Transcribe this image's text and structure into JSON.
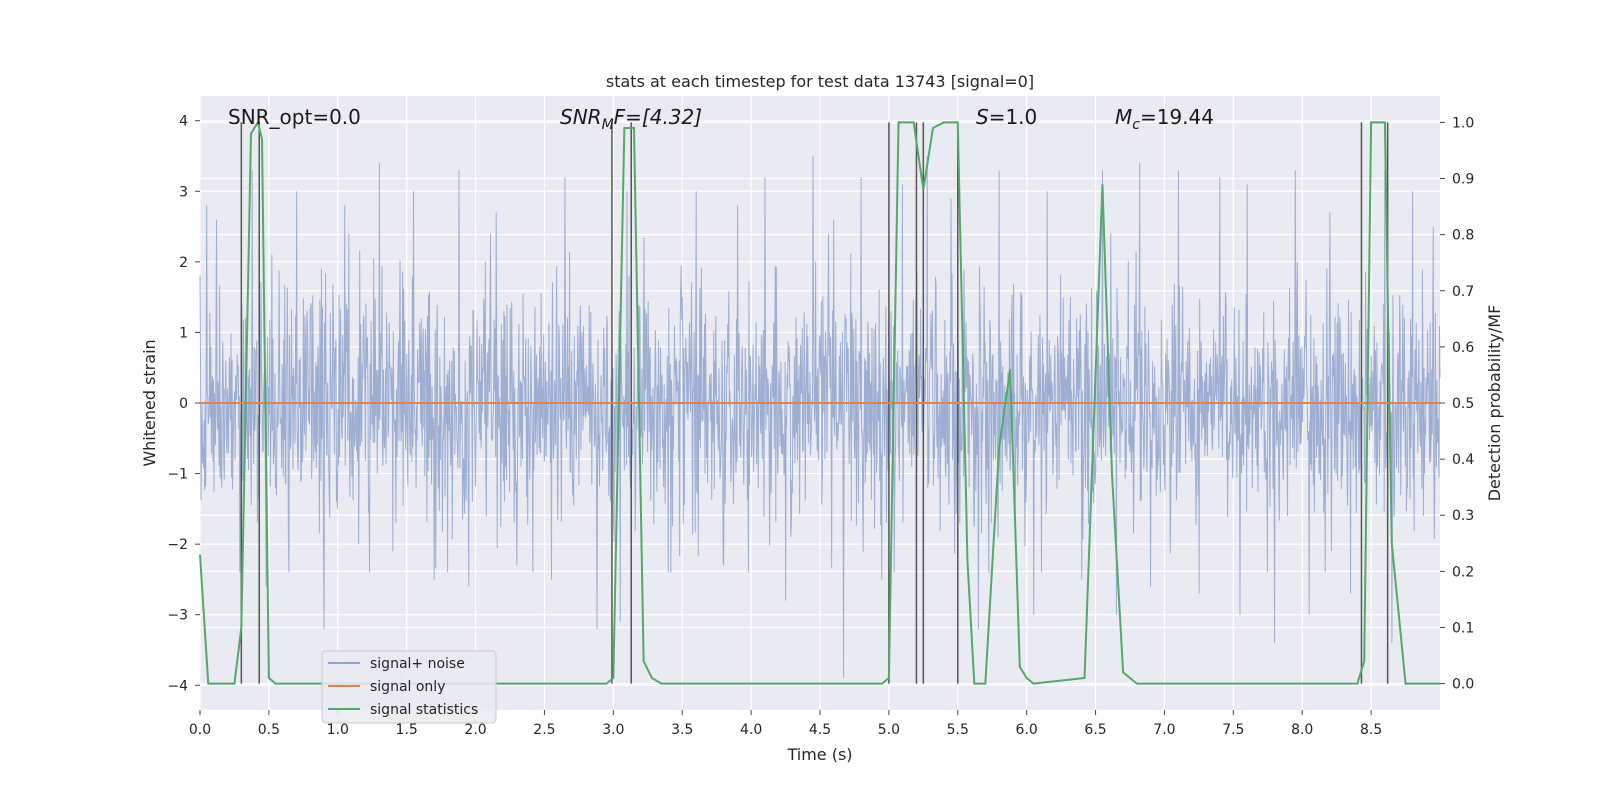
{
  "chart_data": {
    "type": "line",
    "title": "stats at each timestep for test data 13743 [signal=0]",
    "xlabel": "Time (s)",
    "ylabel_left": "Whitened strain",
    "ylabel_right": "Detection probability/MF",
    "xlim": [
      0.0,
      9.0
    ],
    "ylim_left": [
      -4.35,
      4.35
    ],
    "ylim_right": [
      -0.047,
      1.047
    ],
    "x_ticks": [
      "0.0",
      "0.5",
      "1.0",
      "1.5",
      "2.0",
      "2.5",
      "3.0",
      "3.5",
      "4.0",
      "4.5",
      "5.0",
      "5.5",
      "6.0",
      "6.5",
      "7.0",
      "7.5",
      "8.0",
      "8.5"
    ],
    "y_ticks_left": [
      "−4",
      "−3",
      "−2",
      "−1",
      "0",
      "1",
      "2",
      "3",
      "4"
    ],
    "y_ticks_right": [
      "0.0",
      "0.1",
      "0.2",
      "0.3",
      "0.4",
      "0.5",
      "0.6",
      "0.7",
      "0.8",
      "0.9",
      "1.0"
    ],
    "grid": true,
    "annotations": {
      "snr_opt": "SNR_opt=0.0",
      "snr_mf_main": "SNR",
      "snr_mf_sub": "M",
      "snr_mf_rest": "F=[4.32]",
      "s_main": "S",
      "s_rest": "=1.0",
      "mc_main": "M",
      "mc_sub": "c",
      "mc_rest": "=19.44"
    },
    "legend": {
      "position": "lower-left",
      "entries": [
        "signal+ noise",
        "signal only",
        "signal statistics"
      ]
    },
    "series": [
      {
        "name": "signal+ noise",
        "axis": "left",
        "kind": "noise",
        "color": "#8fa3cc",
        "std": 0.82,
        "spikes": [
          [
            0.05,
            2.8
          ],
          [
            0.12,
            2.6
          ],
          [
            0.3,
            -2.4
          ],
          [
            0.38,
            3.3
          ],
          [
            0.48,
            -2.6
          ],
          [
            0.7,
            3.0
          ],
          [
            0.9,
            -3.2
          ],
          [
            1.05,
            2.8
          ],
          [
            1.15,
            -2.0
          ],
          [
            1.3,
            3.4
          ],
          [
            1.4,
            -2.1
          ],
          [
            1.55,
            3.0
          ],
          [
            1.7,
            -2.5
          ],
          [
            1.88,
            3.3
          ],
          [
            1.95,
            -2.6
          ],
          [
            2.15,
            2.7
          ],
          [
            2.3,
            -2.3
          ],
          [
            2.55,
            -2.5
          ],
          [
            2.65,
            3.2
          ],
          [
            2.88,
            -3.2
          ],
          [
            3.05,
            -3.1
          ],
          [
            3.1,
            3.0
          ],
          [
            3.4,
            -2.4
          ],
          [
            3.6,
            3.0
          ],
          [
            3.8,
            -2.3
          ],
          [
            3.9,
            2.8
          ],
          [
            4.1,
            3.2
          ],
          [
            4.25,
            -2.8
          ],
          [
            4.45,
            3.5
          ],
          [
            4.6,
            2.6
          ],
          [
            4.67,
            -3.9
          ],
          [
            4.8,
            3.2
          ],
          [
            4.95,
            -2.5
          ],
          [
            5.1,
            3.1
          ],
          [
            5.2,
            -2.9
          ],
          [
            5.28,
            3.5
          ],
          [
            5.45,
            2.9
          ],
          [
            5.65,
            -3.2
          ],
          [
            5.8,
            3.3
          ],
          [
            6.05,
            -3.0
          ],
          [
            6.15,
            3.0
          ],
          [
            6.4,
            -2.5
          ],
          [
            6.55,
            3.3
          ],
          [
            6.65,
            -3.0
          ],
          [
            6.82,
            3.4
          ],
          [
            6.9,
            -2.6
          ],
          [
            7.1,
            3.3
          ],
          [
            7.25,
            -2.7
          ],
          [
            7.4,
            3.2
          ],
          [
            7.55,
            -3.0
          ],
          [
            7.6,
            3.1
          ],
          [
            7.8,
            -3.4
          ],
          [
            7.95,
            3.3
          ],
          [
            8.05,
            -3.0
          ],
          [
            8.2,
            2.7
          ],
          [
            8.35,
            -2.7
          ],
          [
            8.6,
            3.3
          ],
          [
            8.65,
            -3.4
          ],
          [
            8.8,
            3.0
          ],
          [
            8.95,
            2.5
          ]
        ]
      },
      {
        "name": "signal only",
        "axis": "left",
        "kind": "line",
        "color": "#dd8452",
        "x": [
          0.0,
          9.0
        ],
        "y": [
          0.0,
          0.0
        ]
      },
      {
        "name": "signal statistics",
        "axis": "right",
        "kind": "line",
        "color": "#55a868",
        "x": [
          0.0,
          0.06,
          0.25,
          0.3,
          0.37,
          0.42,
          0.45,
          0.5,
          0.55,
          2.95,
          3.0,
          3.08,
          3.15,
          3.22,
          3.28,
          3.35,
          4.0,
          4.95,
          5.0,
          5.07,
          5.18,
          5.25,
          5.32,
          5.4,
          5.5,
          5.57,
          5.62,
          5.7,
          5.8,
          5.88,
          5.95,
          6.0,
          6.05,
          6.42,
          6.55,
          6.62,
          6.7,
          6.8,
          8.4,
          8.45,
          8.5,
          8.6,
          8.65,
          8.75,
          9.0
        ],
        "y": [
          0.23,
          0.0,
          0.0,
          0.1,
          0.98,
          1.0,
          0.97,
          0.01,
          0.0,
          0.0,
          0.01,
          0.99,
          0.99,
          0.04,
          0.01,
          0.0,
          0.0,
          0.0,
          0.01,
          1.0,
          1.0,
          0.88,
          0.99,
          1.0,
          1.0,
          0.22,
          0.0,
          0.0,
          0.42,
          0.56,
          0.03,
          0.01,
          0.0,
          0.01,
          0.89,
          0.37,
          0.02,
          0.0,
          0.0,
          0.04,
          1.0,
          1.0,
          0.25,
          0.0,
          0.0
        ]
      }
    ],
    "vertical_markers": [
      0.3,
      0.43,
      2.99,
      3.13,
      5.0,
      5.2,
      5.25,
      5.5,
      8.43,
      8.62
    ]
  }
}
